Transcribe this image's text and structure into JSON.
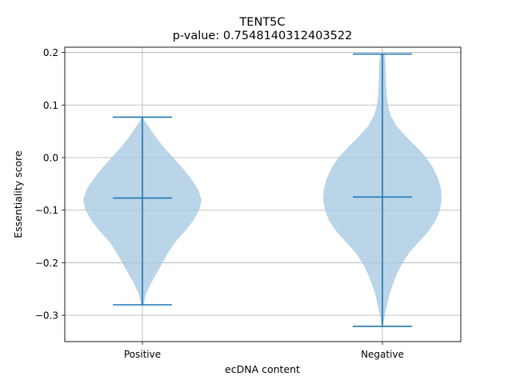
{
  "chart_data": {
    "type": "violin",
    "title": "TENT5C",
    "subtitle": "p-value: 0.7548140312403522",
    "xlabel": "ecDNA content",
    "ylabel": "Essentiality score",
    "categories": [
      "Positive",
      "Negative"
    ],
    "ylim": [
      -0.35,
      0.21
    ],
    "yticks": [
      -0.3,
      -0.2,
      -0.1,
      0.0,
      0.1,
      0.2
    ],
    "ytick_labels": [
      "−0.3",
      "−0.2",
      "−0.1",
      "0.0",
      "0.1",
      "0.2"
    ],
    "grid": true,
    "colors": {
      "body": "#a6c8e2",
      "lines": "#1f77b4",
      "grid": "#b0b0b0"
    },
    "violins": [
      {
        "category": "Positive",
        "min": -0.28,
        "max": 0.077,
        "median": -0.077,
        "density_profile": [
          [
            0.077,
            0.0
          ],
          [
            0.06,
            0.1
          ],
          [
            0.04,
            0.22
          ],
          [
            0.02,
            0.36
          ],
          [
            0.0,
            0.52
          ],
          [
            -0.02,
            0.68
          ],
          [
            -0.04,
            0.82
          ],
          [
            -0.06,
            0.94
          ],
          [
            -0.08,
            1.0
          ],
          [
            -0.1,
            0.96
          ],
          [
            -0.12,
            0.86
          ],
          [
            -0.14,
            0.72
          ],
          [
            -0.16,
            0.56
          ],
          [
            -0.18,
            0.44
          ],
          [
            -0.2,
            0.34
          ],
          [
            -0.22,
            0.24
          ],
          [
            -0.24,
            0.14
          ],
          [
            -0.26,
            0.06
          ],
          [
            -0.28,
            0.02
          ]
        ]
      },
      {
        "category": "Negative",
        "min": -0.321,
        "max": 0.197,
        "median": -0.075,
        "density_profile": [
          [
            0.197,
            0.04
          ],
          [
            0.18,
            0.05
          ],
          [
            0.15,
            0.06
          ],
          [
            0.12,
            0.07
          ],
          [
            0.1,
            0.09
          ],
          [
            0.08,
            0.14
          ],
          [
            0.06,
            0.24
          ],
          [
            0.04,
            0.4
          ],
          [
            0.02,
            0.58
          ],
          [
            0.0,
            0.74
          ],
          [
            -0.02,
            0.86
          ],
          [
            -0.04,
            0.94
          ],
          [
            -0.06,
            0.99
          ],
          [
            -0.08,
            1.0
          ],
          [
            -0.1,
            0.97
          ],
          [
            -0.12,
            0.9
          ],
          [
            -0.14,
            0.78
          ],
          [
            -0.16,
            0.62
          ],
          [
            -0.18,
            0.46
          ],
          [
            -0.2,
            0.34
          ],
          [
            -0.22,
            0.25
          ],
          [
            -0.24,
            0.18
          ],
          [
            -0.26,
            0.12
          ],
          [
            -0.28,
            0.08
          ],
          [
            -0.3,
            0.04
          ],
          [
            -0.321,
            0.01
          ]
        ]
      }
    ]
  }
}
